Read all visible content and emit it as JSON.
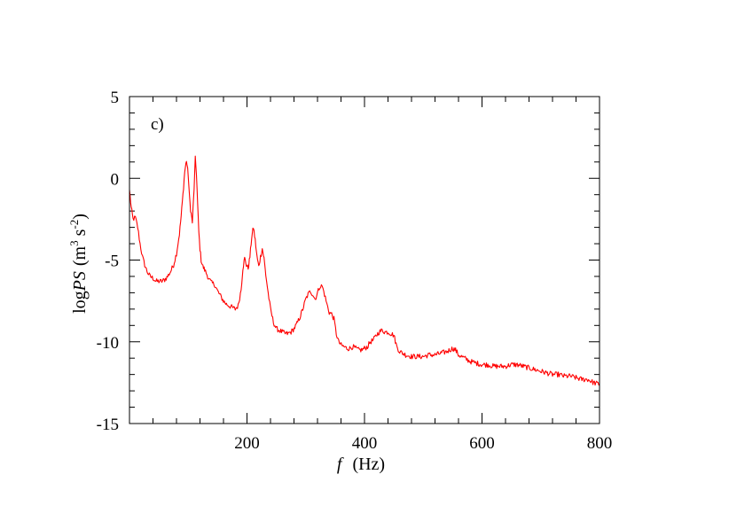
{
  "chart_data": {
    "type": "line",
    "panel_label": "c)",
    "xlabel": {
      "symbol": "f",
      "unit": "(Hz)"
    },
    "ylabel": {
      "prefix": "log",
      "symbol": "PS",
      "unit_open": "(m",
      "unit_exp1": "3",
      "unit_mid": " s",
      "unit_exp2": "-2",
      "unit_close": ")"
    },
    "xlim": [
      0,
      800
    ],
    "ylim": [
      -15,
      5
    ],
    "x_ticks": [
      200,
      400,
      600,
      800
    ],
    "x_tick_labels": [
      "200",
      "400",
      "600",
      "800"
    ],
    "y_ticks": [
      -15,
      -10,
      -5,
      0,
      5
    ],
    "y_tick_labels": [
      "-15",
      "-10",
      "-5",
      "0",
      "5"
    ],
    "x_minor_step": 40,
    "y_minor_step": 1,
    "grid": false,
    "series": [
      {
        "color": "#ff0000",
        "x": [
          0,
          3,
          6,
          10,
          14,
          18,
          22,
          26,
          30,
          35,
          40,
          45,
          50,
          55,
          60,
          65,
          70,
          75,
          80,
          85,
          88,
          91,
          94,
          97,
          100,
          102,
          104,
          107,
          110,
          112,
          114,
          116,
          118,
          120,
          122,
          125,
          128,
          132,
          136,
          140,
          145,
          150,
          155,
          160,
          165,
          170,
          175,
          180,
          185,
          190,
          193,
          196,
          199,
          202,
          205,
          208,
          211,
          214,
          217,
          220,
          223,
          226,
          229,
          232,
          236,
          240,
          245,
          250,
          255,
          260,
          265,
          270,
          275,
          280,
          285,
          290,
          295,
          300,
          304,
          308,
          312,
          316,
          320,
          324,
          328,
          332,
          336,
          340,
          344,
          348,
          352,
          356,
          360,
          365,
          370,
          375,
          380,
          385,
          390,
          395,
          400,
          405,
          410,
          415,
          420,
          425,
          430,
          435,
          440,
          445,
          450,
          455,
          460,
          465,
          470,
          480,
          490,
          500,
          510,
          520,
          530,
          540,
          545,
          550,
          555,
          560,
          570,
          580,
          590,
          600,
          610,
          620,
          630,
          640,
          650,
          660,
          670,
          680,
          690,
          700,
          710,
          720,
          730,
          740,
          750,
          760,
          770,
          780,
          790,
          800
        ],
        "y": [
          -0.7,
          -1.8,
          -2.5,
          -2.4,
          -3.0,
          -4.0,
          -4.8,
          -5.3,
          -5.7,
          -6.0,
          -6.1,
          -6.3,
          -6.3,
          -6.3,
          -6.2,
          -6.0,
          -5.7,
          -5.3,
          -4.6,
          -3.4,
          -2.3,
          -1.0,
          0.4,
          1.1,
          0.2,
          -1.1,
          -1.9,
          -2.7,
          -0.6,
          1.2,
          0.3,
          -1.6,
          -3.3,
          -4.3,
          -5.0,
          -5.4,
          -5.6,
          -5.9,
          -6.2,
          -6.4,
          -6.5,
          -6.9,
          -7.2,
          -7.5,
          -7.7,
          -7.8,
          -7.9,
          -8.0,
          -7.8,
          -6.8,
          -5.5,
          -4.9,
          -5.3,
          -5.5,
          -4.8,
          -3.6,
          -3.0,
          -3.8,
          -4.8,
          -5.4,
          -4.8,
          -4.3,
          -4.9,
          -5.9,
          -7.0,
          -8.0,
          -8.8,
          -9.2,
          -9.3,
          -9.4,
          -9.5,
          -9.5,
          -9.4,
          -9.2,
          -8.9,
          -8.5,
          -8.0,
          -7.4,
          -7.1,
          -6.9,
          -7.1,
          -7.4,
          -7.0,
          -6.6,
          -6.6,
          -7.1,
          -7.7,
          -8.2,
          -8.3,
          -8.6,
          -9.5,
          -10.0,
          -10.2,
          -10.3,
          -10.4,
          -10.4,
          -10.3,
          -10.4,
          -10.5,
          -10.5,
          -10.4,
          -10.3,
          -10.0,
          -9.9,
          -9.6,
          -9.4,
          -9.3,
          -9.4,
          -9.4,
          -9.5,
          -9.6,
          -10.3,
          -10.6,
          -10.7,
          -10.8,
          -10.9,
          -10.9,
          -10.9,
          -10.8,
          -10.8,
          -10.7,
          -10.6,
          -10.5,
          -10.4,
          -10.5,
          -10.8,
          -11.0,
          -11.2,
          -11.3,
          -11.4,
          -11.4,
          -11.5,
          -11.5,
          -11.5,
          -11.4,
          -11.4,
          -11.5,
          -11.6,
          -11.7,
          -11.8,
          -11.9,
          -12.0,
          -12.0,
          -12.1,
          -12.1,
          -12.2,
          -12.3,
          -12.3,
          -12.5,
          -12.6
        ]
      }
    ]
  }
}
